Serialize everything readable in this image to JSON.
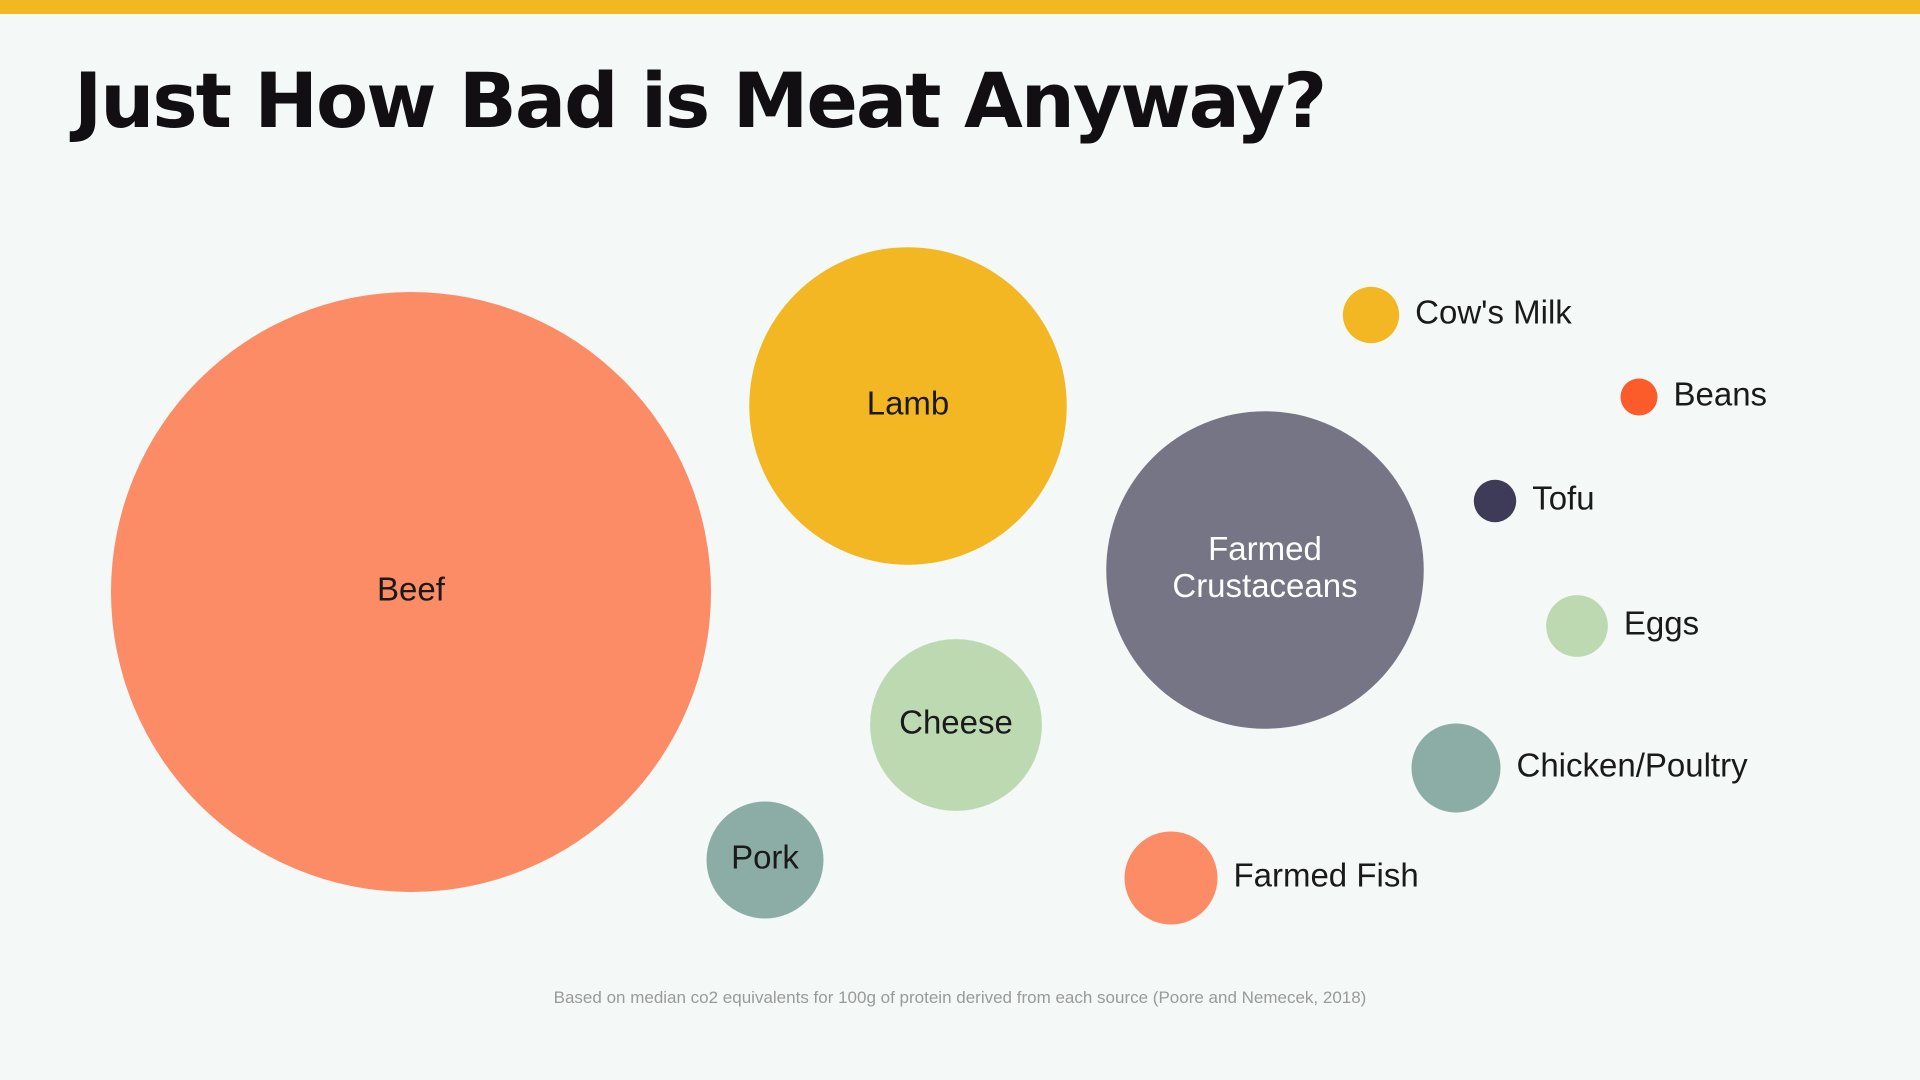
{
  "title": "Just How Bad is Meat Anyway?",
  "footnote": "Based on median co2 equivalents for 100g of protein derived from each source (Poore and Nemecek, 2018)",
  "colors": {
    "accent_bar": "#f3b723",
    "background": "#f4f8f7",
    "title_text": "#120f12",
    "footnote_text": "#9a9a9a"
  },
  "chart_data": {
    "type": "bubble",
    "title": "Just How Bad is Meat Anyway?",
    "measure": "median CO2 equivalents per 100g of protein (relative size)",
    "series": [
      {
        "name": "Beef",
        "label_lines": [
          "Beef"
        ],
        "value": 50,
        "color": "#fb8c66",
        "text_color": "#1a1a1a",
        "label_position": "inside"
      },
      {
        "name": "Lamb",
        "label_lines": [
          "Lamb"
        ],
        "value": 14,
        "color": "#f3b723",
        "text_color": "#1a1a1a",
        "label_position": "inside"
      },
      {
        "name": "Farmed Crustaceans",
        "label_lines": [
          "Farmed",
          "Crustaceans"
        ],
        "value": 14,
        "color": "#767586",
        "text_color": "#ffffff",
        "label_position": "inside"
      },
      {
        "name": "Cheese",
        "label_lines": [
          "Cheese"
        ],
        "value": 4.1,
        "color": "#bcd9b2",
        "text_color": "#1a1a1a",
        "label_position": "inside"
      },
      {
        "name": "Pork",
        "label_lines": [
          "Pork"
        ],
        "value": 1.9,
        "color": "#8cada6",
        "text_color": "#1a1a1a",
        "label_position": "inside"
      },
      {
        "name": "Farmed Fish",
        "label_lines": [
          "Farmed Fish"
        ],
        "value": 1.2,
        "color": "#fb8c66",
        "text_color": "#1a1a1a",
        "label_position": "right"
      },
      {
        "name": "Chicken/Poultry",
        "label_lines": [
          "Chicken/Poultry"
        ],
        "value": 1.1,
        "color": "#8cada6",
        "text_color": "#1a1a1a",
        "label_position": "right"
      },
      {
        "name": "Eggs",
        "label_lines": [
          "Eggs"
        ],
        "value": 0.53,
        "color": "#bcd9b2",
        "text_color": "#1a1a1a",
        "label_position": "right"
      },
      {
        "name": "Cow's Milk",
        "label_lines": [
          "Cow's Milk"
        ],
        "value": 0.44,
        "color": "#f3b723",
        "text_color": "#1a1a1a",
        "label_position": "right"
      },
      {
        "name": "Tofu",
        "label_lines": [
          "Tofu"
        ],
        "value": 0.25,
        "color": "#3d3b57",
        "text_color": "#1a1a1a",
        "label_position": "right"
      },
      {
        "name": "Beans",
        "label_lines": [
          "Beans"
        ],
        "value": 0.19,
        "color": "#fc5b2a",
        "text_color": "#1a1a1a",
        "label_position": "right"
      }
    ]
  }
}
